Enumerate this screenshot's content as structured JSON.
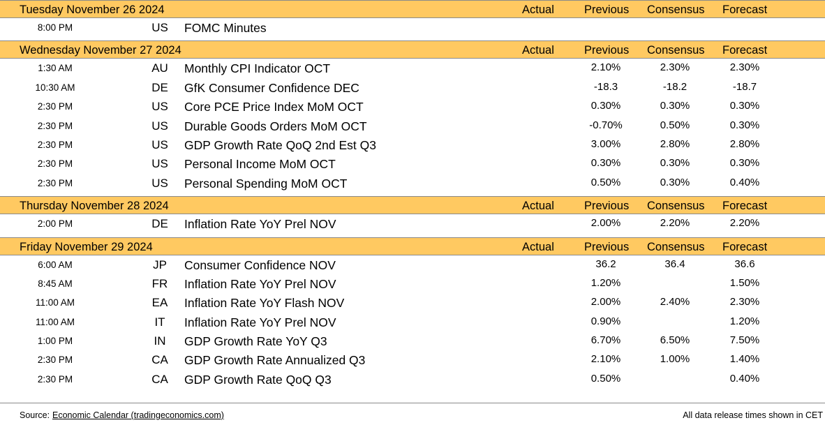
{
  "columns": {
    "actual": "Actual",
    "previous": "Previous",
    "consensus": "Consensus",
    "forecast": "Forecast"
  },
  "days": [
    {
      "title": "Tuesday November 26 2024",
      "events": [
        {
          "time": "8:00 PM",
          "country": "US",
          "event": "FOMC Minutes",
          "actual": "",
          "previous": "",
          "consensus": "",
          "forecast": ""
        }
      ]
    },
    {
      "title": "Wednesday November 27 2024",
      "events": [
        {
          "time": "1:30 AM",
          "country": "AU",
          "event": "Monthly CPI Indicator OCT",
          "actual": "",
          "previous": "2.10%",
          "consensus": "2.30%",
          "forecast": "2.30%"
        },
        {
          "time": "10:30 AM",
          "country": "DE",
          "event": "GfK Consumer Confidence DEC",
          "actual": "",
          "previous": "-18.3",
          "consensus": "-18.2",
          "forecast": "-18.7"
        },
        {
          "time": "2:30 PM",
          "country": "US",
          "event": "Core PCE Price Index MoM OCT",
          "actual": "",
          "previous": "0.30%",
          "consensus": "0.30%",
          "forecast": "0.30%"
        },
        {
          "time": "2:30 PM",
          "country": "US",
          "event": "Durable Goods Orders MoM OCT",
          "actual": "",
          "previous": "-0.70%",
          "consensus": "0.50%",
          "forecast": "0.30%"
        },
        {
          "time": "2:30 PM",
          "country": "US",
          "event": "GDP Growth Rate QoQ 2nd Est Q3",
          "actual": "",
          "previous": "3.00%",
          "consensus": "2.80%",
          "forecast": "2.80%"
        },
        {
          "time": "2:30 PM",
          "country": "US",
          "event": "Personal Income MoM OCT",
          "actual": "",
          "previous": "0.30%",
          "consensus": "0.30%",
          "forecast": "0.30%"
        },
        {
          "time": "2:30 PM",
          "country": "US",
          "event": "Personal Spending MoM OCT",
          "actual": "",
          "previous": "0.50%",
          "consensus": "0.30%",
          "forecast": "0.40%"
        }
      ]
    },
    {
      "title": "Thursday November 28 2024",
      "events": [
        {
          "time": "2:00 PM",
          "country": "DE",
          "event": "Inflation Rate YoY Prel NOV",
          "actual": "",
          "previous": "2.00%",
          "consensus": "2.20%",
          "forecast": "2.20%"
        }
      ]
    },
    {
      "title": "Friday November 29 2024",
      "events": [
        {
          "time": "6:00 AM",
          "country": "JP",
          "event": "Consumer Confidence NOV",
          "actual": "",
          "previous": "36.2",
          "consensus": "36.4",
          "forecast": "36.6"
        },
        {
          "time": "8:45 AM",
          "country": "FR",
          "event": "Inflation Rate YoY Prel NOV",
          "actual": "",
          "previous": "1.20%",
          "consensus": "",
          "forecast": "1.50%"
        },
        {
          "time": "11:00 AM",
          "country": "EA",
          "event": "Inflation Rate YoY Flash NOV",
          "actual": "",
          "previous": "2.00%",
          "consensus": "2.40%",
          "forecast": "2.30%"
        },
        {
          "time": "11:00 AM",
          "country": "IT",
          "event": "Inflation Rate YoY Prel NOV",
          "actual": "",
          "previous": "0.90%",
          "consensus": "",
          "forecast": "1.20%"
        },
        {
          "time": "1:00 PM",
          "country": "IN",
          "event": "GDP Growth Rate YoY Q3",
          "actual": "",
          "previous": "6.70%",
          "consensus": "6.50%",
          "forecast": "7.50%"
        },
        {
          "time": "2:30 PM",
          "country": "CA",
          "event": "GDP Growth Rate Annualized Q3",
          "actual": "",
          "previous": "2.10%",
          "consensus": "1.00%",
          "forecast": "1.40%"
        },
        {
          "time": "2:30 PM",
          "country": "CA",
          "event": "GDP Growth Rate QoQ Q3",
          "actual": "",
          "previous": "0.50%",
          "consensus": "",
          "forecast": "0.40%"
        }
      ]
    }
  ],
  "footer": {
    "source_label": "Source:",
    "source_link": "Economic Calendar (tradingeconomics.com)",
    "note": "All data release times shown in CET"
  },
  "colors": {
    "header_bg": "#ffc961",
    "rule": "#8a8a8a"
  }
}
